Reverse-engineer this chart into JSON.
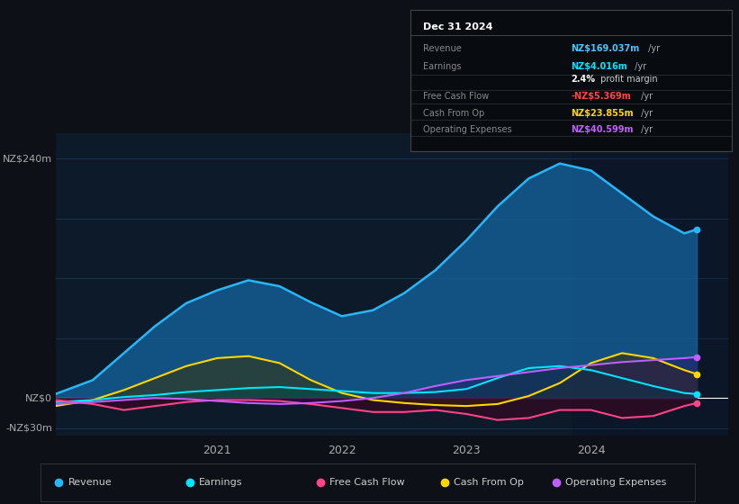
{
  "bg_color": "#0d1117",
  "plot_bg_color": "#0d1a2a",
  "grid_color": "#1e3a5a",
  "zero_line_color": "#ffffff",
  "y_label_top": "NZ$240m",
  "y_label_mid": "NZ$0",
  "y_label_bot": "-NZ$30m",
  "x_ticks": [
    2021,
    2022,
    2023,
    2024
  ],
  "info_title": "Dec 31 2024",
  "info_rows": [
    {
      "label": "Revenue",
      "value": "NZ$169.037m",
      "suffix": " /yr",
      "value_color": "#4fc3f7"
    },
    {
      "label": "Earnings",
      "value": "NZ$4.016m",
      "suffix": " /yr",
      "value_color": "#00e5ff"
    },
    {
      "label": "",
      "value": "2.4%",
      "suffix": " profit margin",
      "value_color": "#ffffff",
      "suffix_color": "#cccccc"
    },
    {
      "label": "Free Cash Flow",
      "value": "-NZ$5.369m",
      "suffix": " /yr",
      "value_color": "#ff4444"
    },
    {
      "label": "Cash From Op",
      "value": "NZ$23.855m",
      "suffix": " /yr",
      "value_color": "#ffd700"
    },
    {
      "label": "Operating Expenses",
      "value": "NZ$40.599m",
      "suffix": " /yr",
      "value_color": "#bf5fff"
    }
  ],
  "series": {
    "revenue": {
      "color": "#29b6f6",
      "fill_color": "#1565a0",
      "fill_alpha": 0.75,
      "x": [
        2019.7,
        2020.0,
        2020.25,
        2020.5,
        2020.75,
        2021.0,
        2021.25,
        2021.5,
        2021.75,
        2022.0,
        2022.25,
        2022.5,
        2022.75,
        2023.0,
        2023.25,
        2023.5,
        2023.75,
        2024.0,
        2024.25,
        2024.5,
        2024.75,
        2024.85
      ],
      "y": [
        4,
        18,
        45,
        72,
        95,
        108,
        118,
        112,
        96,
        82,
        88,
        105,
        128,
        158,
        192,
        220,
        235,
        228,
        205,
        182,
        165,
        169
      ]
    },
    "earnings": {
      "color": "#00e5ff",
      "fill_color": "#004d40",
      "fill_alpha": 0.55,
      "x": [
        2019.7,
        2020.0,
        2020.25,
        2020.5,
        2020.75,
        2021.0,
        2021.25,
        2021.5,
        2021.75,
        2022.0,
        2022.25,
        2022.5,
        2022.75,
        2023.0,
        2023.25,
        2023.5,
        2023.75,
        2024.0,
        2024.25,
        2024.5,
        2024.75,
        2024.85
      ],
      "y": [
        -4,
        -2,
        1,
        3,
        6,
        8,
        10,
        11,
        9,
        7,
        5,
        5,
        6,
        9,
        20,
        30,
        32,
        28,
        20,
        12,
        5,
        4
      ]
    },
    "free_cash_flow": {
      "color": "#ff4488",
      "fill_color": "#4a0020",
      "fill_alpha": 0.45,
      "x": [
        2019.7,
        2020.0,
        2020.25,
        2020.5,
        2020.75,
        2021.0,
        2021.25,
        2021.5,
        2021.75,
        2022.0,
        2022.25,
        2022.5,
        2022.75,
        2023.0,
        2023.25,
        2023.5,
        2023.75,
        2024.0,
        2024.25,
        2024.5,
        2024.75,
        2024.85
      ],
      "y": [
        -2,
        -6,
        -12,
        -8,
        -4,
        -2,
        -2,
        -3,
        -6,
        -10,
        -14,
        -14,
        -12,
        -16,
        -22,
        -20,
        -12,
        -12,
        -20,
        -18,
        -8,
        -5
      ]
    },
    "cash_from_op": {
      "color": "#ffd700",
      "fill_color": "#3d3000",
      "fill_alpha": 0.5,
      "x": [
        2019.7,
        2020.0,
        2020.25,
        2020.5,
        2020.75,
        2021.0,
        2021.25,
        2021.5,
        2021.75,
        2022.0,
        2022.25,
        2022.5,
        2022.75,
        2023.0,
        2023.25,
        2023.5,
        2023.75,
        2024.0,
        2024.25,
        2024.5,
        2024.75,
        2024.85
      ],
      "y": [
        -8,
        -2,
        8,
        20,
        32,
        40,
        42,
        35,
        18,
        5,
        -2,
        -5,
        -7,
        -8,
        -6,
        2,
        15,
        35,
        45,
        40,
        28,
        24
      ]
    },
    "operating_expenses": {
      "color": "#bf5fff",
      "fill_color": "#2d0055",
      "fill_alpha": 0.35,
      "x": [
        2019.7,
        2020.0,
        2020.25,
        2020.5,
        2020.75,
        2021.0,
        2021.25,
        2021.5,
        2021.75,
        2022.0,
        2022.25,
        2022.5,
        2022.75,
        2023.0,
        2023.25,
        2023.5,
        2023.75,
        2024.0,
        2024.25,
        2024.5,
        2024.75,
        2024.85
      ],
      "y": [
        -6,
        -4,
        -2,
        0,
        -1,
        -3,
        -5,
        -6,
        -5,
        -3,
        0,
        5,
        12,
        18,
        22,
        26,
        30,
        33,
        36,
        38,
        40,
        41
      ]
    }
  },
  "legend": [
    {
      "label": "Revenue",
      "color": "#29b6f6"
    },
    {
      "label": "Earnings",
      "color": "#00e5ff"
    },
    {
      "label": "Free Cash Flow",
      "color": "#ff4488"
    },
    {
      "label": "Cash From Op",
      "color": "#ffd700"
    },
    {
      "label": "Operating Expenses",
      "color": "#bf5fff"
    }
  ]
}
